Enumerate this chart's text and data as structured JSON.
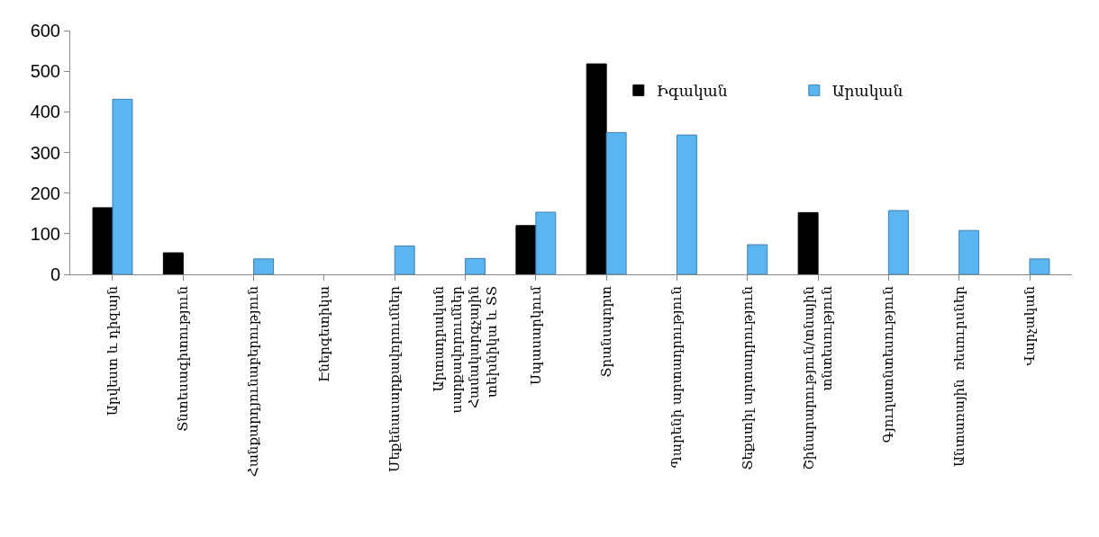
{
  "chart_data": {
    "type": "bar",
    "categories": [
      "Արվեստ և դիզայն",
      "Տնտեսագիտություն",
      "Հանքարդյունաբերություն",
      "Էներգետիկա",
      "Մեքենասարքավորումներ",
      "Արտադրական\nսարքավորումներ\nՀամակարգչային\nտեխնիկա և ՏՏ",
      "Սպասարկում",
      "Տրանսպորտ",
      "Պարենի արտադրություն",
      "Տեքստիլ արտադրություն",
      "Շինարարություն/տնային\nտնտեսություն",
      "Գյուղատնտեսություն",
      "Անտառային  ռեսուրսներ",
      "Վարչական"
    ],
    "series": [
      {
        "name": "Իգական",
        "color": "#000000",
        "values": [
          164,
          53,
          null,
          null,
          null,
          null,
          120,
          518,
          null,
          null,
          152,
          null,
          null,
          null
        ]
      },
      {
        "name": "Արական",
        "color": "#5bb5f0",
        "values": [
          431,
          null,
          38,
          null,
          70,
          39,
          153,
          349,
          343,
          73,
          null,
          157,
          108,
          38
        ]
      }
    ],
    "ylim": [
      0,
      600
    ],
    "yticks": [
      0,
      100,
      200,
      300,
      400,
      500,
      600
    ],
    "grid": false,
    "legend": "top right"
  }
}
